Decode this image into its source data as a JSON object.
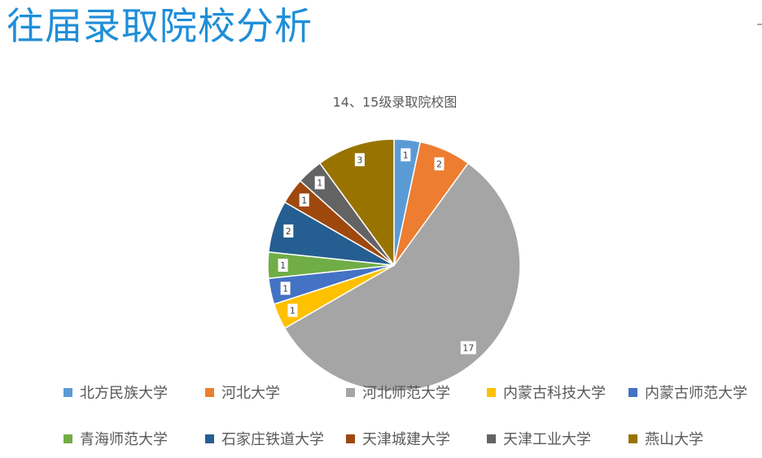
{
  "page": {
    "title": "往届录取院校分析"
  },
  "chart_data": {
    "type": "pie",
    "title": "14、15级录取院校图",
    "categories": [
      "北方民族大学",
      "河北大学",
      "河北师范大学",
      "内蒙古科技大学",
      "内蒙古师范大学",
      "青海师范大学",
      "石家庄铁道大学",
      "天津城建大学",
      "天津工业大学",
      "燕山大学"
    ],
    "values": [
      1,
      2,
      17,
      1,
      1,
      1,
      2,
      1,
      1,
      3
    ],
    "data_labels": [
      "1",
      "2",
      "17",
      "1",
      "1",
      "1",
      "2",
      "1",
      "1",
      "3"
    ],
    "colors": [
      "#5b9bd5",
      "#ed7d31",
      "#a5a5a5",
      "#ffc000",
      "#4472c4",
      "#70ad47",
      "#255e91",
      "#9e480e",
      "#636363",
      "#997300"
    ],
    "legend_position": "bottom",
    "start": "top, clockwise"
  }
}
